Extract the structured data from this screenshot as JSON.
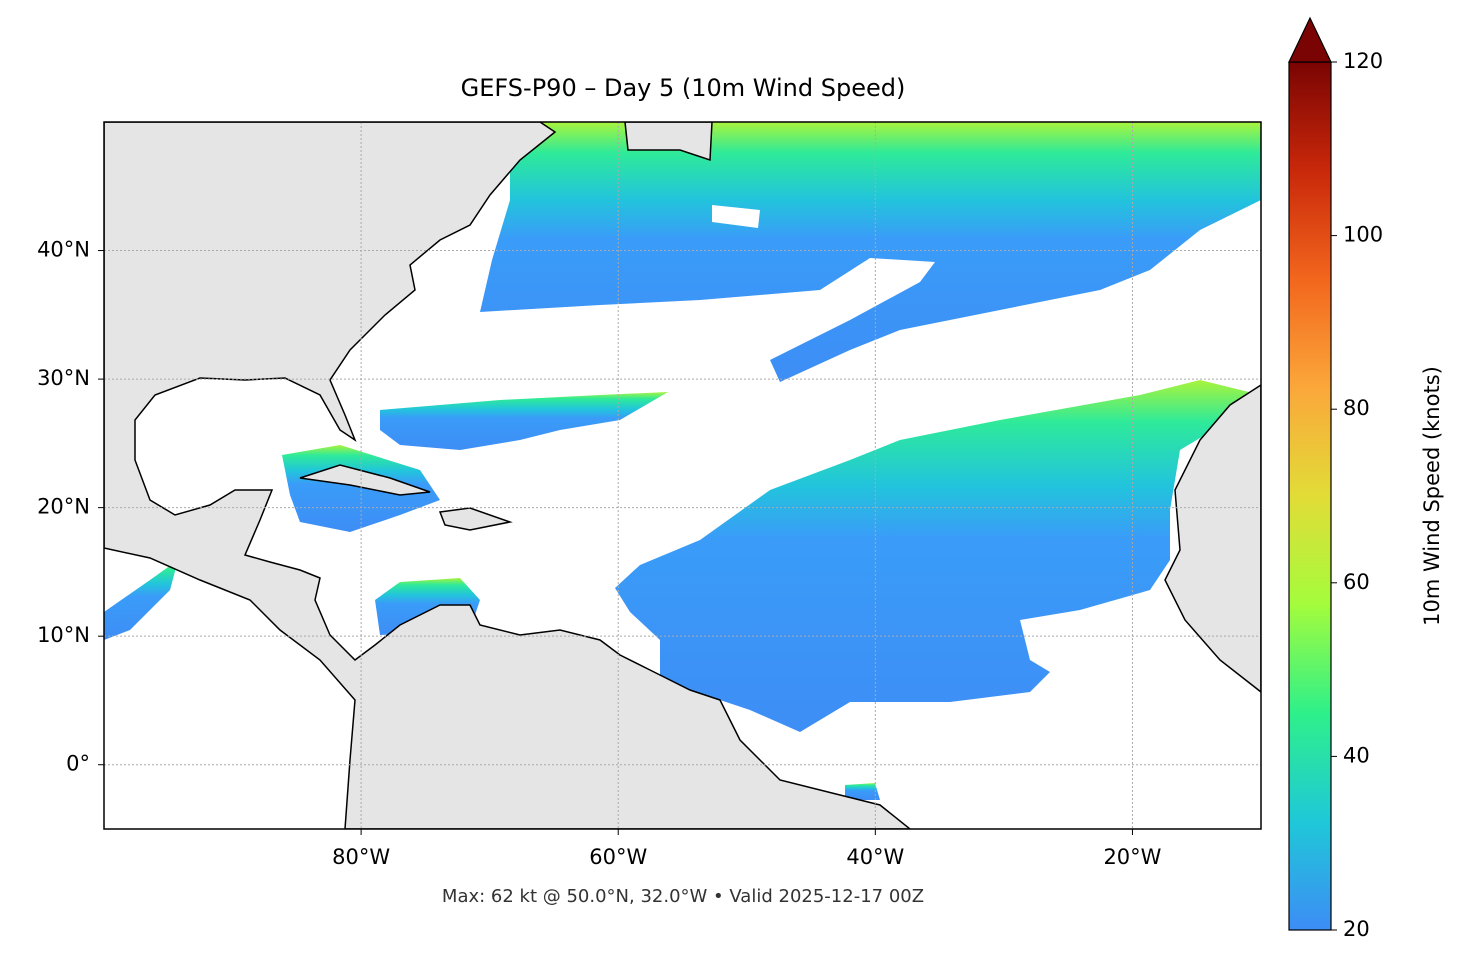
{
  "chart_data": {
    "type": "map",
    "title": "GEFS-P90 – Day 5 (10m Wind Speed)",
    "subtitle": "Max: 62 kt @ 50.0°N, 32.0°W • Valid 2025-12-17 00Z",
    "xlim": [
      -100,
      -10
    ],
    "ylim": [
      -5,
      50
    ],
    "xticks": [
      {
        "value": -80,
        "label": "80°W"
      },
      {
        "value": -60,
        "label": "60°W"
      },
      {
        "value": -40,
        "label": "40°W"
      },
      {
        "value": -20,
        "label": "20°W"
      }
    ],
    "yticks": [
      {
        "value": 0,
        "label": "0°"
      },
      {
        "value": 10,
        "label": "10°N"
      },
      {
        "value": 20,
        "label": "20°N"
      },
      {
        "value": 30,
        "label": "30°N"
      },
      {
        "value": 40,
        "label": "40°N"
      }
    ],
    "grid": true,
    "colorbar": {
      "label": "10m Wind Speed (knots)",
      "lim": [
        20,
        120
      ],
      "ticks": [
        20,
        40,
        60,
        80,
        100,
        120
      ],
      "colors": [
        "#3d8df5",
        "#1fc8d8",
        "#2ef08a",
        "#a4fc3c",
        "#e2dc37",
        "#fba73a",
        "#f2661d",
        "#c9280a",
        "#7a0403"
      ]
    }
  }
}
